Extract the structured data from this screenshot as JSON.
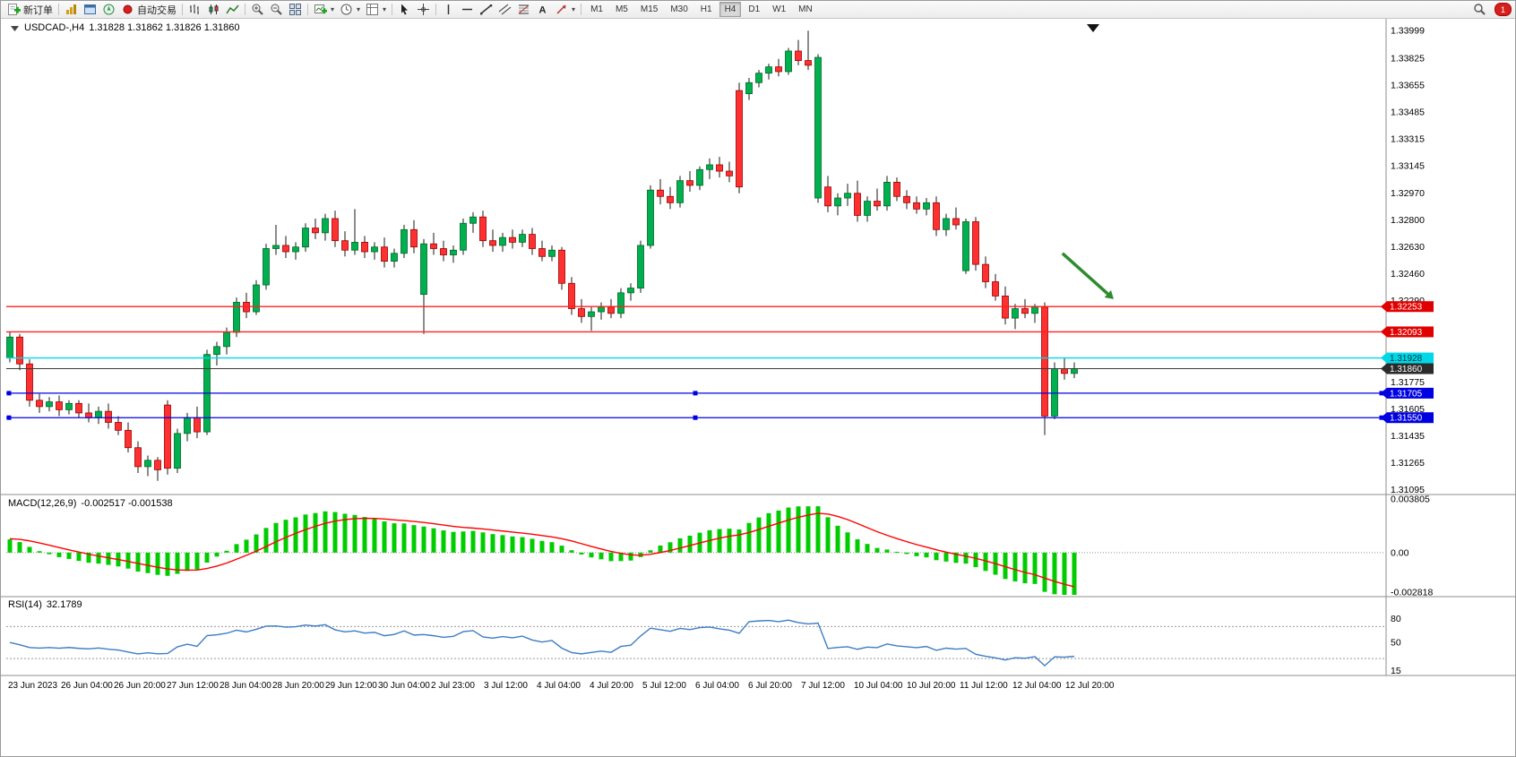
{
  "toolbar": {
    "new_order": "新订单",
    "auto_trading": "自动交易",
    "timeframes": [
      "M1",
      "M5",
      "M15",
      "M30",
      "H1",
      "H4",
      "D1",
      "W1",
      "MN"
    ],
    "active_timeframe": "H4",
    "alert_count": "1",
    "icons": [
      "new-order",
      "market-watch",
      "data-window",
      "navigator",
      "auto-trading",
      "bar-chart",
      "candlestick-chart",
      "line-chart",
      "zoom-in",
      "zoom-out",
      "tile-windows",
      "new-chart",
      "periods",
      "templates",
      "cursor",
      "crosshair",
      "vertical-line",
      "horizontal-line",
      "trendline",
      "equidistant-channel",
      "fibonacci",
      "text",
      "arrow-objects",
      "search",
      "alerts"
    ]
  },
  "chart": {
    "symbol_label": "USDCAD-,H4",
    "ohlc_label": "1.31828 1.31862 1.31826 1.31860",
    "macd_label": "MACD(12,26,9)",
    "macd_values": "-0.002517 -0.001538",
    "rsi_label": "RSI(14)",
    "rsi_value": "32.1789"
  },
  "chart_data": {
    "type": "candlestick",
    "symbol": "USDCAD-",
    "timeframe": "H4",
    "price_range": {
      "max": 1.3404,
      "min": 1.31075
    },
    "price_axis_labels": [
      "1.33999",
      "1.33825",
      "1.33655",
      "1.33485",
      "1.33315",
      "1.33145",
      "1.32970",
      "1.32800",
      "1.32630",
      "1.32460",
      "1.32290",
      "1.31775",
      "1.31605",
      "1.31435",
      "1.31265",
      "1.31095"
    ],
    "time_axis_labels": [
      "23 Jun 2023",
      "26 Jun 04:00",
      "26 Jun 20:00",
      "27 Jun 12:00",
      "28 Jun 04:00",
      "28 Jun 20:00",
      "29 Jun 12:00",
      "30 Jun 04:00",
      "2 Jul 23:00",
      "3 Jul 12:00",
      "4 Jul 04:00",
      "4 Jul 20:00",
      "5 Jul 12:00",
      "6 Jul 04:00",
      "6 Jul 20:00",
      "7 Jul 12:00",
      "10 Jul 04:00",
      "10 Jul 20:00",
      "11 Jul 12:00",
      "12 Jul 04:00",
      "12 Jul 20:00"
    ],
    "colors": {
      "bull": "#00B050",
      "bear": "#FF3030",
      "bull_border": "#006622",
      "bear_border": "#990000",
      "wick": "#1a1a1a",
      "macd_hist": "#00CC00",
      "macd_signal": "#FF0000",
      "rsi_line": "#3E7CC4"
    },
    "hlines": [
      {
        "price": 1.32253,
        "color": "#FF2020",
        "tag_color": "#E00000",
        "width": 1.4
      },
      {
        "price": 1.32093,
        "color": "#FF2020",
        "tag_color": "#E00000",
        "width": 1.4
      },
      {
        "price": 1.31928,
        "color": "#00D8E8",
        "tag_color": "#00D8E8",
        "text_color": "#00333a",
        "width": 1.3
      },
      {
        "price": 1.3186,
        "color": "#3a3a3a",
        "tag_color": "#2b2b2b",
        "width": 1
      },
      {
        "price": 1.31705,
        "color": "#0000E6",
        "tag_color": "#0000E0",
        "width": 1.3,
        "markers": true
      },
      {
        "price": 1.3155,
        "color": "#0000E6",
        "tag_color": "#0000E0",
        "width": 1.3,
        "markers": true
      }
    ],
    "arrow": {
      "from_bar": 106.8,
      "from_price": 1.3259,
      "to_bar": 112,
      "to_price": 1.323,
      "color": "#2e8b2e"
    },
    "macd": {
      "label": "MACD(12,26,9)",
      "main_value": -0.002517,
      "signal_value": -0.001538,
      "params": [
        12,
        26,
        9
      ],
      "axis_labels": [
        "0.003805",
        "0.00",
        "-0.002818"
      ],
      "scale_max": 0.004,
      "scale_min": -0.003
    },
    "rsi": {
      "label": "RSI(14)",
      "value": 32.1789,
      "period": 14,
      "axis_labels": [
        "80",
        "50",
        "15"
      ],
      "levels": [
        70,
        30
      ],
      "scale_max": 105,
      "scale_min": 10
    },
    "candles": [
      [
        1.3193,
        1.3209,
        1.319,
        1.3206
      ],
      [
        1.3206,
        1.3208,
        1.3185,
        1.3189
      ],
      [
        1.3189,
        1.3192,
        1.3162,
        1.3166
      ],
      [
        1.3166,
        1.317,
        1.3158,
        1.3162
      ],
      [
        1.3162,
        1.3168,
        1.3159,
        1.3165
      ],
      [
        1.3165,
        1.3169,
        1.3156,
        1.316
      ],
      [
        1.316,
        1.3166,
        1.3157,
        1.3164
      ],
      [
        1.3164,
        1.3166,
        1.3155,
        1.3158
      ],
      [
        1.3158,
        1.3164,
        1.3152,
        1.3155
      ],
      [
        1.3155,
        1.3162,
        1.3151,
        1.3159
      ],
      [
        1.3159,
        1.3164,
        1.3148,
        1.3152
      ],
      [
        1.3152,
        1.3156,
        1.3144,
        1.3147
      ],
      [
        1.3147,
        1.3152,
        1.3133,
        1.3136
      ],
      [
        1.3136,
        1.314,
        1.312,
        1.3124
      ],
      [
        1.3124,
        1.3131,
        1.3118,
        1.3128
      ],
      [
        1.3128,
        1.313,
        1.3115,
        1.3122
      ],
      [
        1.3163,
        1.3166,
        1.3119,
        1.3123
      ],
      [
        1.3123,
        1.3148,
        1.312,
        1.3145
      ],
      [
        1.3145,
        1.3158,
        1.314,
        1.3155
      ],
      [
        1.3155,
        1.3162,
        1.3142,
        1.3146
      ],
      [
        1.3146,
        1.3198,
        1.3144,
        1.3195
      ],
      [
        1.3195,
        1.3203,
        1.3188,
        1.32
      ],
      [
        1.32,
        1.3212,
        1.3195,
        1.3209
      ],
      [
        1.3209,
        1.3231,
        1.3206,
        1.3228
      ],
      [
        1.3228,
        1.3234,
        1.3218,
        1.3222
      ],
      [
        1.3222,
        1.3242,
        1.322,
        1.3239
      ],
      [
        1.3239,
        1.3265,
        1.3236,
        1.3262
      ],
      [
        1.3262,
        1.3277,
        1.3258,
        1.3264
      ],
      [
        1.3264,
        1.327,
        1.3256,
        1.326
      ],
      [
        1.326,
        1.3266,
        1.3255,
        1.3263
      ],
      [
        1.3263,
        1.3278,
        1.326,
        1.3275
      ],
      [
        1.3275,
        1.3281,
        1.3268,
        1.3272
      ],
      [
        1.3272,
        1.3284,
        1.3267,
        1.3281
      ],
      [
        1.3281,
        1.3286,
        1.3263,
        1.3267
      ],
      [
        1.3267,
        1.3273,
        1.3257,
        1.3261
      ],
      [
        1.3261,
        1.3287,
        1.3258,
        1.3266
      ],
      [
        1.3266,
        1.327,
        1.3256,
        1.326
      ],
      [
        1.326,
        1.3266,
        1.3255,
        1.3263
      ],
      [
        1.3263,
        1.3269,
        1.325,
        1.3254
      ],
      [
        1.3254,
        1.3262,
        1.325,
        1.3259
      ],
      [
        1.3259,
        1.3277,
        1.3256,
        1.3274
      ],
      [
        1.3274,
        1.328,
        1.3259,
        1.3263
      ],
      [
        1.3233,
        1.3268,
        1.3208,
        1.3265
      ],
      [
        1.3265,
        1.3272,
        1.3258,
        1.3262
      ],
      [
        1.3262,
        1.3267,
        1.3254,
        1.3258
      ],
      [
        1.3258,
        1.3264,
        1.3253,
        1.3261
      ],
      [
        1.3261,
        1.3281,
        1.3258,
        1.3278
      ],
      [
        1.3278,
        1.3285,
        1.3272,
        1.3282
      ],
      [
        1.3282,
        1.3286,
        1.3263,
        1.3267
      ],
      [
        1.3267,
        1.3274,
        1.326,
        1.3264
      ],
      [
        1.3264,
        1.3272,
        1.326,
        1.3269
      ],
      [
        1.3269,
        1.3274,
        1.3262,
        1.3266
      ],
      [
        1.3266,
        1.3274,
        1.3263,
        1.3271
      ],
      [
        1.3271,
        1.3275,
        1.3258,
        1.3262
      ],
      [
        1.3262,
        1.3267,
        1.3254,
        1.3257
      ],
      [
        1.3257,
        1.3264,
        1.3254,
        1.3261
      ],
      [
        1.3261,
        1.3263,
        1.3236,
        1.324
      ],
      [
        1.324,
        1.3244,
        1.322,
        1.3224
      ],
      [
        1.3224,
        1.323,
        1.3215,
        1.3219
      ],
      [
        1.3219,
        1.3225,
        1.321,
        1.3222
      ],
      [
        1.3222,
        1.3228,
        1.3217,
        1.3225
      ],
      [
        1.3225,
        1.323,
        1.3218,
        1.3221
      ],
      [
        1.3221,
        1.3237,
        1.3218,
        1.3234
      ],
      [
        1.3234,
        1.324,
        1.3229,
        1.3237
      ],
      [
        1.3237,
        1.3267,
        1.3234,
        1.3264
      ],
      [
        1.3264,
        1.3302,
        1.3262,
        1.3299
      ],
      [
        1.3299,
        1.3306,
        1.329,
        1.3295
      ],
      [
        1.3295,
        1.3301,
        1.3287,
        1.3291
      ],
      [
        1.3291,
        1.3308,
        1.3288,
        1.3305
      ],
      [
        1.3305,
        1.3311,
        1.3298,
        1.3302
      ],
      [
        1.3302,
        1.3314,
        1.3299,
        1.3312
      ],
      [
        1.3312,
        1.3319,
        1.3306,
        1.3315
      ],
      [
        1.3315,
        1.332,
        1.3307,
        1.3311
      ],
      [
        1.3311,
        1.3317,
        1.3304,
        1.3308
      ],
      [
        1.3362,
        1.3367,
        1.3297,
        1.3301
      ],
      [
        1.336,
        1.337,
        1.3356,
        1.3367
      ],
      [
        1.3367,
        1.3375,
        1.3364,
        1.3373
      ],
      [
        1.3373,
        1.3379,
        1.3369,
        1.3377
      ],
      [
        1.3377,
        1.3382,
        1.3371,
        1.3374
      ],
      [
        1.3374,
        1.3389,
        1.3372,
        1.3387
      ],
      [
        1.3387,
        1.3394,
        1.3378,
        1.3381
      ],
      [
        1.3381,
        1.33999,
        1.3375,
        1.3378
      ],
      [
        1.3294,
        1.3385,
        1.3291,
        1.3383
      ],
      [
        1.3301,
        1.3308,
        1.3285,
        1.3289
      ],
      [
        1.3289,
        1.3297,
        1.3283,
        1.3294
      ],
      [
        1.3294,
        1.3303,
        1.3289,
        1.3297
      ],
      [
        1.3297,
        1.3305,
        1.3279,
        1.3283
      ],
      [
        1.3283,
        1.3295,
        1.3279,
        1.3292
      ],
      [
        1.3292,
        1.33,
        1.3286,
        1.3289
      ],
      [
        1.3289,
        1.3308,
        1.3286,
        1.3304
      ],
      [
        1.3304,
        1.3307,
        1.3292,
        1.3295
      ],
      [
        1.3295,
        1.3299,
        1.3287,
        1.3291
      ],
      [
        1.3291,
        1.3295,
        1.3284,
        1.3287
      ],
      [
        1.3287,
        1.3294,
        1.3283,
        1.3291
      ],
      [
        1.3291,
        1.3295,
        1.327,
        1.3274
      ],
      [
        1.3274,
        1.3284,
        1.327,
        1.3281
      ],
      [
        1.3281,
        1.3288,
        1.3274,
        1.3277
      ],
      [
        1.3248,
        1.3281,
        1.3246,
        1.3279
      ],
      [
        1.3279,
        1.3282,
        1.3248,
        1.3252
      ],
      [
        1.3252,
        1.3257,
        1.3237,
        1.3241
      ],
      [
        1.3241,
        1.3246,
        1.3229,
        1.3232
      ],
      [
        1.3232,
        1.3238,
        1.3214,
        1.3218
      ],
      [
        1.3218,
        1.3227,
        1.3211,
        1.3224
      ],
      [
        1.3224,
        1.323,
        1.3218,
        1.3221
      ],
      [
        1.3221,
        1.3227,
        1.3215,
        1.3225
      ],
      [
        1.3225,
        1.3228,
        1.3144,
        1.3156
      ],
      [
        1.3156,
        1.319,
        1.3154,
        1.3186
      ],
      [
        1.3186,
        1.3193,
        1.3179,
        1.3183
      ],
      [
        1.3183,
        1.319,
        1.318,
        1.3186
      ]
    ]
  }
}
